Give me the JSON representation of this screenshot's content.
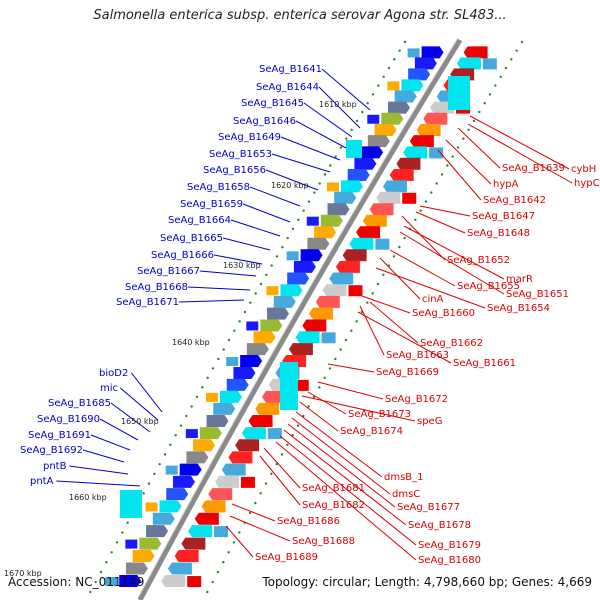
{
  "title": "Salmonella enterica subsp. enterica serovar Agona str. SL483...",
  "footer": {
    "accession": "Accession: NC_011149",
    "summary": "Topology: circular; Length: 4,798,660 bp; Genes: 4,669"
  },
  "colors": {
    "forward_label": "#0000cc",
    "reverse_label": "#dd0000",
    "backbone": "#888888"
  },
  "scale": [
    "1610 kbp",
    "1620 kbp",
    "1630 kbp",
    "1640 kbp",
    "1650 kbp",
    "1660 kbp",
    "1670 kbp"
  ],
  "forward_genes": [
    "SeAg_B1641",
    "SeAg_B1644",
    "SeAg_B1645",
    "SeAg_B1646",
    "SeAg_B1649",
    "SeAg_B1653",
    "SeAg_B1656",
    "SeAg_B1658",
    "SeAg_B1659",
    "SeAg_B1664",
    "SeAg_B1665",
    "SeAg_B1666",
    "SeAg_B1667",
    "SeAg_B1668",
    "SeAg_B1671",
    "bioD2",
    "mic",
    "SeAg_B1685",
    "SeAg_B1690",
    "SeAg_B1691",
    "SeAg_B1692",
    "pntB",
    "pntA"
  ],
  "reverse_genes": [
    "cybH",
    "hypC",
    "SeAg_B1639",
    "hypA",
    "SeAg_B1642",
    "SeAg_B1647",
    "SeAg_B1648",
    "SeAg_B1652",
    "marR",
    "SeAg_B1651",
    "SeAg_B1655",
    "cinA",
    "SeAg_B1654",
    "SeAg_B1660",
    "SeAg_B1662",
    "SeAg_B1663",
    "SeAg_B1661",
    "SeAg_B1669",
    "SeAg_B1672",
    "SeAg_B1673",
    "speG",
    "SeAg_B1674",
    "dmsB_1",
    "SeAg_B1681",
    "dmsC",
    "SeAg_B1677",
    "SeAg_B1682",
    "SeAg_B1678",
    "SeAg_B1686",
    "SeAg_B1688",
    "SeAg_B1679",
    "SeAg_B1680",
    "SeAg_B1689"
  ]
}
